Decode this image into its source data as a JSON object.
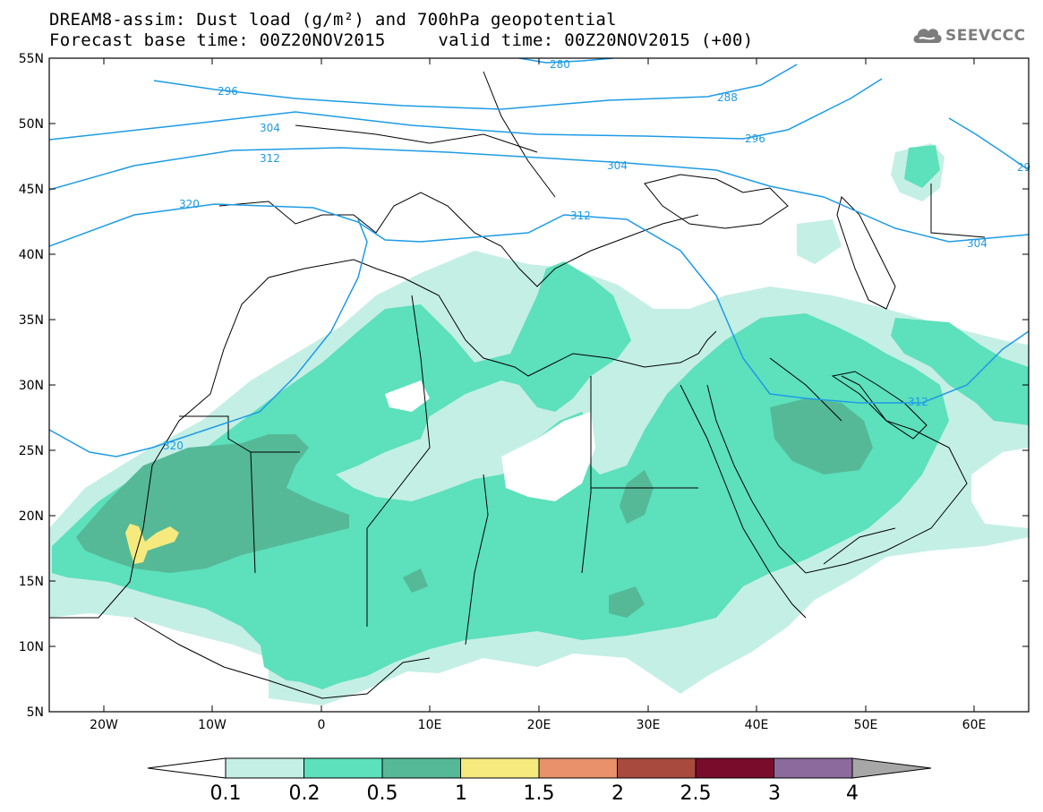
{
  "header": {
    "line1": "DREAM8-assim: Dust load (g/m²) and 700hPa geopotential",
    "line2": "Forecast base time: 00Z20NOV2015     valid time: 00Z20NOV2015 (+00)"
  },
  "logo": {
    "text": "SEEVCCC",
    "icon": "cloud-logo-icon"
  },
  "map": {
    "extent": {
      "lon": [
        -25,
        65
      ],
      "lat": [
        5,
        55
      ]
    },
    "lat_labels": [
      "55N",
      "50N",
      "45N",
      "40N",
      "35N",
      "30N",
      "25N",
      "20N",
      "15N",
      "10N",
      "5N"
    ],
    "lon_labels": [
      "20W",
      "10W",
      "0",
      "10E",
      "20E",
      "30E",
      "40E",
      "50E",
      "60E"
    ],
    "contour_labels": [
      "280",
      "296",
      "288",
      "304",
      "296",
      "312",
      "304",
      "312",
      "320",
      "304",
      "312",
      "320",
      "29"
    ],
    "contour_color": "#1e9be6"
  },
  "colorbar": {
    "ticks": [
      "0.1",
      "0.2",
      "0.5",
      "1",
      "1.5",
      "2",
      "2.5",
      "3",
      "4"
    ],
    "colors": [
      "#c4efe5",
      "#5de0bc",
      "#55b997",
      "#f6ea7f",
      "#e9916a",
      "#a84a3d",
      "#790c2b",
      "#8c6a9e"
    ],
    "low_arrow_color": "#ffffff",
    "high_arrow_color": "#a7a7a7"
  }
}
